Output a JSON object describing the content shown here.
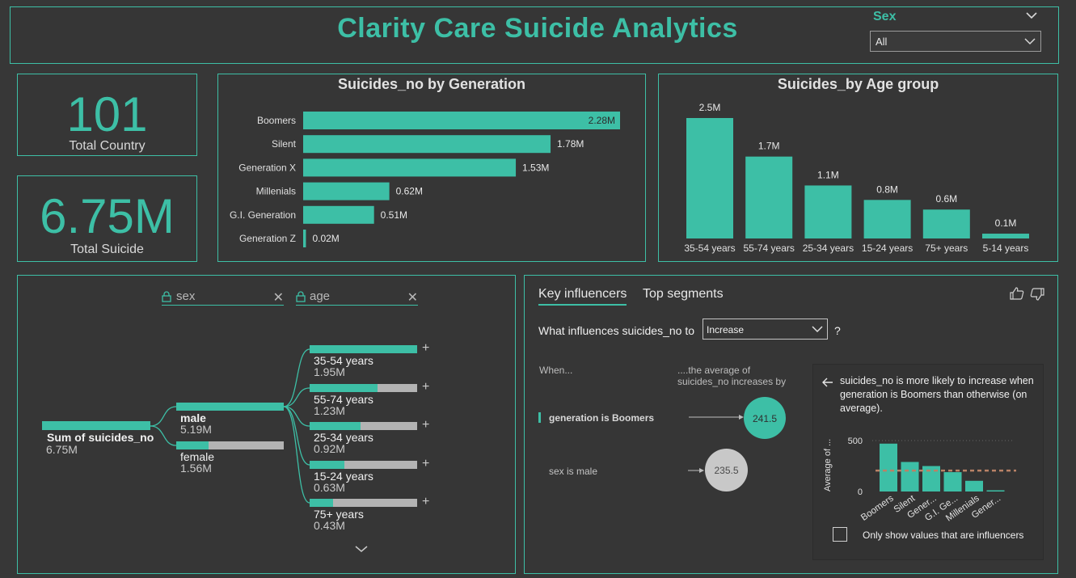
{
  "header": {
    "title": "Clarity Care Suicide Analytics"
  },
  "slicer": {
    "label": "Sex",
    "value": "All"
  },
  "kpis": [
    {
      "value": "101",
      "label": "Total Country"
    },
    {
      "value": "6.75M",
      "label": "Total Suicide"
    }
  ],
  "chart_data": [
    {
      "type": "bar",
      "orientation": "horizontal",
      "title": "Suicides_no by Generation",
      "categories": [
        "Boomers",
        "Silent",
        "Generation X",
        "Millenials",
        "G.I. Generation",
        "Generation Z"
      ],
      "values": [
        2.28,
        1.78,
        1.53,
        0.62,
        0.51,
        0.02
      ],
      "labels": [
        "2.28M",
        "1.78M",
        "1.53M",
        "0.62M",
        "0.51M",
        "0.02M"
      ],
      "color": "#3dbfa6"
    },
    {
      "type": "bar",
      "title": "Suicides_by Age group",
      "categories": [
        "35-54 years",
        "55-74 years",
        "25-34 years",
        "15-24 years",
        "75+ years",
        "5-14 years"
      ],
      "values": [
        2.5,
        1.7,
        1.1,
        0.8,
        0.6,
        0.1
      ],
      "labels": [
        "2.5M",
        "1.7M",
        "1.1M",
        "0.8M",
        "0.6M",
        "0.1M"
      ],
      "color": "#3dbfa6"
    },
    {
      "type": "bar",
      "title": "",
      "ylabel": "Average of ...",
      "categories": [
        "Boomers",
        "Silent",
        "Gener...",
        "G.I. Ge...",
        "Millenials",
        "Gener..."
      ],
      "values": [
        470,
        290,
        250,
        190,
        105,
        8
      ],
      "yticks": [
        "0",
        "500"
      ],
      "ylim": [
        0,
        500
      ],
      "reference_line": 205,
      "color": "#3dbfa6"
    }
  ],
  "decomp": {
    "filters": [
      {
        "name": "sex"
      },
      {
        "name": "age"
      }
    ],
    "root": {
      "label": "Sum of suicides_no",
      "value": "6.75M"
    },
    "level1": [
      {
        "label": "male",
        "value": "5.19M",
        "fraction": 1.0
      },
      {
        "label": "female",
        "value": "1.56M",
        "fraction": 0.3
      }
    ],
    "level2": [
      {
        "label": "35-54 years",
        "value": "1.95M",
        "fraction": 1.0
      },
      {
        "label": "55-74 years",
        "value": "1.23M",
        "fraction": 0.63
      },
      {
        "label": "25-34 years",
        "value": "0.92M",
        "fraction": 0.47
      },
      {
        "label": "15-24 years",
        "value": "0.63M",
        "fraction": 0.32
      },
      {
        "label": "75+ years",
        "value": "0.43M",
        "fraction": 0.22
      }
    ]
  },
  "influencers": {
    "tabs": [
      "Key influencers",
      "Top segments"
    ],
    "question": "What influences suicides_no to",
    "select_value": "Increase",
    "qmark": "?",
    "col_when": "When...",
    "col_avg_line1": "....the average of",
    "col_avg_line2": "suicides_no increases by",
    "items": [
      {
        "label": "generation is Boomers",
        "value": "241.5",
        "selected": true
      },
      {
        "label": "sex is male",
        "value": "235.5",
        "selected": false
      }
    ],
    "detail_text": "suicides_no is more likely to increase when generation is Boomers than otherwise (on average).",
    "checkbox_label": "Only show values that are influencers"
  },
  "colors": {
    "accent": "#3dbfa6",
    "background": "#373737",
    "bar_gray": "#b3b3b3"
  }
}
